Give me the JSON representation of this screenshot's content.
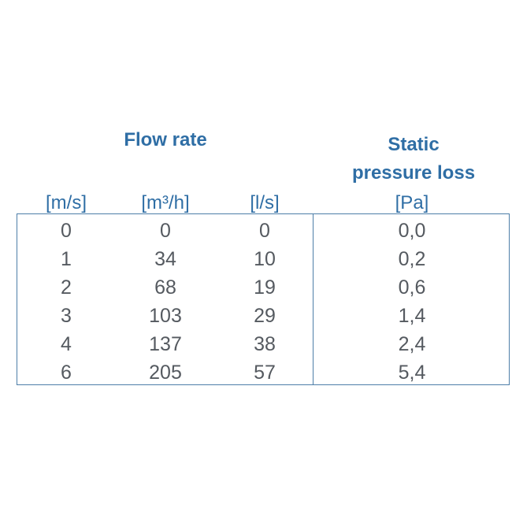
{
  "header": {
    "flow_rate_title": "Flow rate",
    "static_title_line1": "Static",
    "static_title_line2": "pressure loss"
  },
  "units": [
    "[m/s]",
    "[m³/h]",
    "[l/s]",
    "[Pa]"
  ],
  "rows": [
    [
      "0",
      "0",
      "0",
      "0,0"
    ],
    [
      "1",
      "34",
      "10",
      "0,2"
    ],
    [
      "2",
      "68",
      "19",
      "0,6"
    ],
    [
      "3",
      "103",
      "29",
      "1,4"
    ],
    [
      "4",
      "137",
      "38",
      "2,4"
    ],
    [
      "6",
      "205",
      "57",
      "5,4"
    ]
  ],
  "colors": {
    "header_blue": "#2f6ea5",
    "border_blue": "#4d7ea8",
    "value_gray": "#555a60"
  }
}
